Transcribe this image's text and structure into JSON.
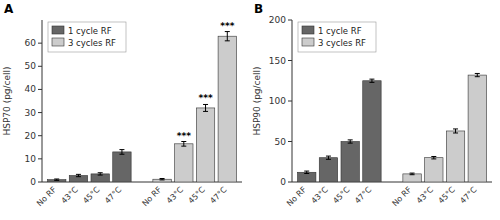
{
  "chart_data": [
    {
      "type": "bar",
      "title": "A",
      "y_label": "HSP70 (pg/cell)",
      "categories": [
        "No RF",
        "43°C",
        "45°C",
        "47°C",
        "No RF",
        "43°C",
        "45°C",
        "47°C"
      ],
      "series": [
        {
          "name": "1 cycle RF",
          "color": "#666666",
          "values": [
            1.0,
            2.8,
            3.5,
            13.0,
            null,
            null,
            null,
            null
          ],
          "errors": [
            0.3,
            0.5,
            0.5,
            1.0,
            null,
            null,
            null,
            null
          ]
        },
        {
          "name": "3 cycles RF",
          "color": "#cccccc",
          "values": [
            null,
            null,
            null,
            null,
            1.2,
            16.5,
            32.0,
            63.0
          ],
          "errors": [
            null,
            null,
            null,
            null,
            0.3,
            1.0,
            1.5,
            2.0
          ]
        }
      ],
      "annotations": [
        {
          "text": "***",
          "series": 1,
          "index": 5
        },
        {
          "text": "***",
          "series": 1,
          "index": 6
        },
        {
          "text": "***",
          "series": 1,
          "index": 7
        }
      ],
      "ylim": [
        0,
        70
      ],
      "yticks": [
        0,
        10,
        20,
        30,
        40,
        50,
        60
      ],
      "grid": false,
      "legend": "upper left"
    },
    {
      "type": "bar",
      "title": "B",
      "y_label": "HSP90 (pg/cell)",
      "categories": [
        "No RF",
        "43°C",
        "45°C",
        "47°C",
        "No RF",
        "43°C",
        "45°C",
        "47°C"
      ],
      "series": [
        {
          "name": "1 cycle RF",
          "color": "#666666",
          "values": [
            12.0,
            30.0,
            50.0,
            125.0,
            null,
            null,
            null,
            null
          ],
          "errors": [
            1.5,
            2.0,
            2.0,
            2.0,
            null,
            null,
            null,
            null
          ]
        },
        {
          "name": "3 cycles RF",
          "color": "#cccccc",
          "values": [
            null,
            null,
            null,
            null,
            10.0,
            30.0,
            63.0,
            132.0
          ],
          "errors": [
            null,
            null,
            null,
            null,
            1.0,
            1.5,
            2.5,
            2.0
          ]
        }
      ],
      "ylim": [
        0,
        200
      ],
      "yticks": [
        0,
        50,
        100,
        150,
        200
      ],
      "grid": false,
      "legend": "upper left"
    }
  ]
}
